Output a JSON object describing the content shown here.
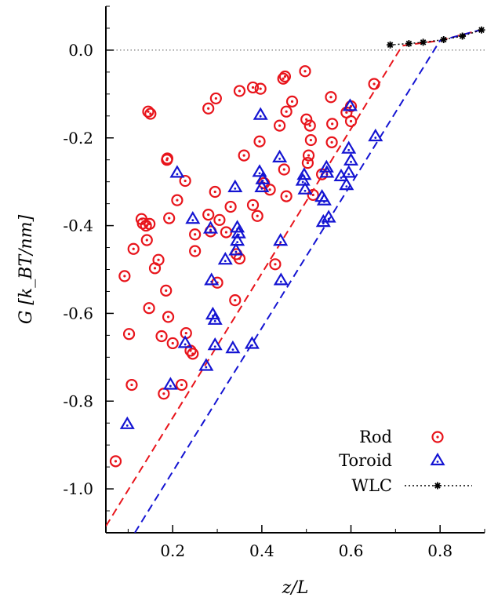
{
  "chart_data": {
    "type": "scatter",
    "title": "",
    "xlabel": "z/L",
    "ylabel": "G [k_BT/nm]",
    "xlim": [
      0.05,
      0.9
    ],
    "ylim": [
      -1.1,
      0.1
    ],
    "x_ticks": [
      "0.2",
      "0.4",
      "0.6",
      "0.8"
    ],
    "x_tick_values": [
      0.2,
      0.4,
      0.6,
      0.8
    ],
    "y_ticks": [
      "0.0",
      "-0.2",
      "-0.4",
      "-0.6",
      "-0.8",
      "-1.0"
    ],
    "y_tick_values": [
      0.0,
      -0.2,
      -0.4,
      -0.6,
      -0.8,
      -1.0
    ],
    "reference_line_y": 0.0,
    "legend_position": "bottom-right",
    "colors": {
      "rod": "#e8141b",
      "toroid": "#1414d2",
      "wlc": "#000000"
    },
    "series": [
      {
        "name": "Rod",
        "marker": "circle-dot",
        "color": "#e8141b",
        "points": [
          [
            0.072,
            -0.937
          ],
          [
            0.092,
            -0.515
          ],
          [
            0.102,
            -0.647
          ],
          [
            0.108,
            -0.763
          ],
          [
            0.112,
            -0.453
          ],
          [
            0.13,
            -0.385
          ],
          [
            0.133,
            -0.395
          ],
          [
            0.14,
            -0.4
          ],
          [
            0.142,
            -0.433
          ],
          [
            0.145,
            -0.14
          ],
          [
            0.147,
            -0.588
          ],
          [
            0.148,
            -0.396
          ],
          [
            0.15,
            -0.145
          ],
          [
            0.16,
            -0.497
          ],
          [
            0.168,
            -0.478
          ],
          [
            0.175,
            -0.652
          ],
          [
            0.18,
            -0.783
          ],
          [
            0.185,
            -0.548
          ],
          [
            0.187,
            -0.25
          ],
          [
            0.188,
            -0.247
          ],
          [
            0.19,
            -0.608
          ],
          [
            0.192,
            -0.383
          ],
          [
            0.2,
            -0.668
          ],
          [
            0.21,
            -0.342
          ],
          [
            0.22,
            -0.763
          ],
          [
            0.228,
            -0.298
          ],
          [
            0.23,
            -0.645
          ],
          [
            0.24,
            -0.685
          ],
          [
            0.245,
            -0.692
          ],
          [
            0.25,
            -0.458
          ],
          [
            0.25,
            -0.42
          ],
          [
            0.28,
            -0.133
          ],
          [
            0.28,
            -0.375
          ],
          [
            0.285,
            -0.413
          ],
          [
            0.295,
            -0.323
          ],
          [
            0.297,
            -0.11
          ],
          [
            0.3,
            -0.53
          ],
          [
            0.305,
            -0.387
          ],
          [
            0.32,
            -0.415
          ],
          [
            0.33,
            -0.357
          ],
          [
            0.34,
            -0.57
          ],
          [
            0.343,
            -0.465
          ],
          [
            0.35,
            -0.475
          ],
          [
            0.35,
            -0.093
          ],
          [
            0.36,
            -0.24
          ],
          [
            0.38,
            -0.085
          ],
          [
            0.38,
            -0.353
          ],
          [
            0.39,
            -0.378
          ],
          [
            0.395,
            -0.208
          ],
          [
            0.397,
            -0.088
          ],
          [
            0.405,
            -0.303
          ],
          [
            0.418,
            -0.318
          ],
          [
            0.43,
            -0.488
          ],
          [
            0.44,
            -0.172
          ],
          [
            0.448,
            -0.065
          ],
          [
            0.45,
            -0.272
          ],
          [
            0.452,
            -0.06
          ],
          [
            0.455,
            -0.14
          ],
          [
            0.455,
            -0.333
          ],
          [
            0.468,
            -0.117
          ],
          [
            0.497,
            -0.048
          ],
          [
            0.5,
            -0.158
          ],
          [
            0.503,
            -0.257
          ],
          [
            0.505,
            -0.24
          ],
          [
            0.508,
            -0.172
          ],
          [
            0.51,
            -0.205
          ],
          [
            0.515,
            -0.33
          ],
          [
            0.535,
            -0.283
          ],
          [
            0.555,
            -0.107
          ],
          [
            0.557,
            -0.21
          ],
          [
            0.558,
            -0.168
          ],
          [
            0.59,
            -0.142
          ],
          [
            0.6,
            -0.128
          ],
          [
            0.6,
            -0.162
          ],
          [
            0.652,
            -0.077
          ]
        ]
      },
      {
        "name": "Toroid",
        "marker": "triangle-dot",
        "color": "#1414d2",
        "points": [
          [
            0.098,
            -0.853
          ],
          [
            0.195,
            -0.763
          ],
          [
            0.21,
            -0.28
          ],
          [
            0.228,
            -0.668
          ],
          [
            0.245,
            -0.385
          ],
          [
            0.275,
            -0.72
          ],
          [
            0.285,
            -0.407
          ],
          [
            0.287,
            -0.525
          ],
          [
            0.29,
            -0.603
          ],
          [
            0.295,
            -0.615
          ],
          [
            0.295,
            -0.673
          ],
          [
            0.318,
            -0.478
          ],
          [
            0.335,
            -0.68
          ],
          [
            0.34,
            -0.313
          ],
          [
            0.342,
            -0.457
          ],
          [
            0.345,
            -0.405
          ],
          [
            0.345,
            -0.435
          ],
          [
            0.348,
            -0.418
          ],
          [
            0.378,
            -0.67
          ],
          [
            0.395,
            -0.278
          ],
          [
            0.397,
            -0.148
          ],
          [
            0.4,
            -0.313
          ],
          [
            0.402,
            -0.295
          ],
          [
            0.44,
            -0.245
          ],
          [
            0.442,
            -0.435
          ],
          [
            0.443,
            -0.525
          ],
          [
            0.492,
            -0.298
          ],
          [
            0.495,
            -0.285
          ],
          [
            0.497,
            -0.318
          ],
          [
            0.535,
            -0.335
          ],
          [
            0.538,
            -0.392
          ],
          [
            0.54,
            -0.343
          ],
          [
            0.545,
            -0.268
          ],
          [
            0.546,
            -0.28
          ],
          [
            0.55,
            -0.382
          ],
          [
            0.578,
            -0.288
          ],
          [
            0.59,
            -0.308
          ],
          [
            0.595,
            -0.225
          ],
          [
            0.595,
            -0.28
          ],
          [
            0.598,
            -0.128
          ],
          [
            0.6,
            -0.252
          ],
          [
            0.655,
            -0.197
          ]
        ]
      },
      {
        "name": "WLC",
        "marker": "star",
        "line": "dotted",
        "color": "#000000",
        "points": [
          [
            0.688,
            0.012
          ],
          [
            0.73,
            0.015
          ],
          [
            0.762,
            0.018
          ],
          [
            0.808,
            0.024
          ],
          [
            0.85,
            0.032
          ],
          [
            0.893,
            0.046
          ]
        ]
      }
    ],
    "fit_lines": [
      {
        "color": "#e8141b",
        "dash": "dashed",
        "points": [
          [
            0.05,
            -1.085
          ],
          [
            0.715,
            0.01
          ],
          [
            0.8,
            0.022
          ],
          [
            0.895,
            0.047
          ]
        ]
      },
      {
        "color": "#1414d2",
        "dash": "dashed",
        "points": [
          [
            0.115,
            -1.1
          ],
          [
            0.8,
            0.022
          ],
          [
            0.895,
            0.047
          ]
        ]
      }
    ]
  }
}
